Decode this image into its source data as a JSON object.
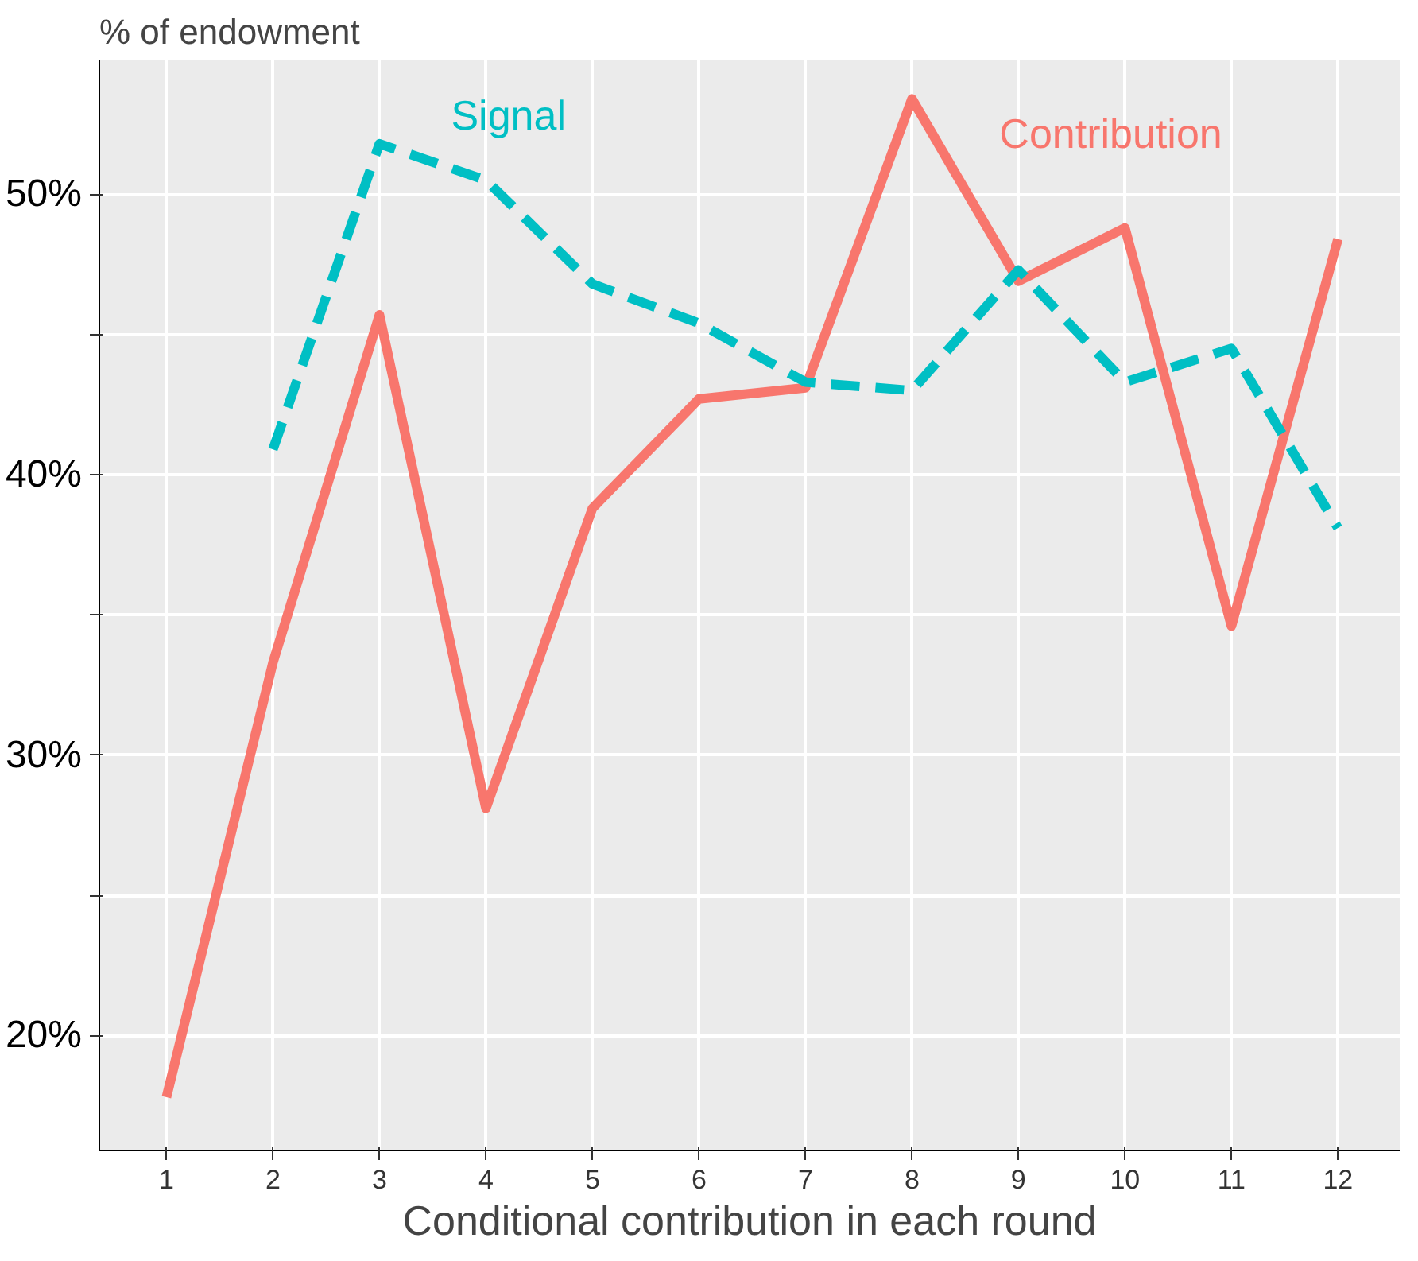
{
  "chart_data": {
    "type": "line",
    "xlabel": "Conditional contribution in each round",
    "ylabel": "% of endowment",
    "x": [
      1,
      2,
      3,
      4,
      5,
      6,
      7,
      8,
      9,
      10,
      11,
      12
    ],
    "series": [
      {
        "name": "Contribution",
        "color": "#f8766d",
        "line_style": "solid",
        "values": [
          17.8,
          33.3,
          45.7,
          28.1,
          38.8,
          42.7,
          43.1,
          53.4,
          46.9,
          48.8,
          34.6,
          48.4
        ]
      },
      {
        "name": "Signal",
        "color": "#00bfc4",
        "line_style": "dashed",
        "values": [
          null,
          40.9,
          51.8,
          50.5,
          46.8,
          45.4,
          43.3,
          43.0,
          47.3,
          43.3,
          44.5,
          38.1
        ]
      }
    ],
    "xlim": [
      0.37,
      12.58
    ],
    "ylim": [
      15.9,
      54.8
    ],
    "xticks": [
      1,
      2,
      3,
      4,
      5,
      6,
      7,
      8,
      9,
      10,
      11,
      12
    ],
    "yticks": [
      {
        "value": 20,
        "label": "20%"
      },
      {
        "value": 25,
        "label": null
      },
      {
        "value": 30,
        "label": "30%"
      },
      {
        "value": 35,
        "label": null
      },
      {
        "value": 40,
        "label": "40%"
      },
      {
        "value": 45,
        "label": null
      },
      {
        "value": 50,
        "label": "50%"
      }
    ],
    "grid": true,
    "legend": false,
    "marker": "none"
  }
}
